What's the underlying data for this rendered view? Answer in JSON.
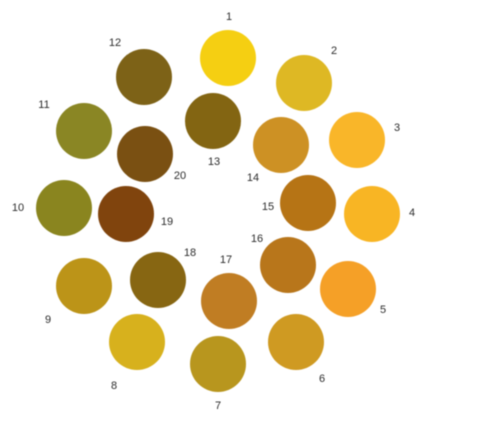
{
  "swatches": [
    {
      "label": "1",
      "color": "#f5cf12"
    },
    {
      "label": "2",
      "color": "#deb824"
    },
    {
      "label": "3",
      "color": "#f9b629"
    },
    {
      "label": "4",
      "color": "#f8b524"
    },
    {
      "label": "5",
      "color": "#f5a027"
    },
    {
      "label": "6",
      "color": "#cf9a22"
    },
    {
      "label": "7",
      "color": "#b8961e"
    },
    {
      "label": "8",
      "color": "#d7b11d"
    },
    {
      "label": "9",
      "color": "#bc9418"
    },
    {
      "label": "10",
      "color": "#8a851f"
    },
    {
      "label": "11",
      "color": "#8a8624"
    },
    {
      "label": "12",
      "color": "#7d6217"
    },
    {
      "label": "13",
      "color": "#836512"
    },
    {
      "label": "14",
      "color": "#cd9124"
    },
    {
      "label": "15",
      "color": "#b67415"
    },
    {
      "label": "16",
      "color": "#b8761b"
    },
    {
      "label": "17",
      "color": "#c07d23"
    },
    {
      "label": "18",
      "color": "#876612"
    },
    {
      "label": "19",
      "color": "#80440d"
    },
    {
      "label": "20",
      "color": "#7a5012"
    }
  ]
}
